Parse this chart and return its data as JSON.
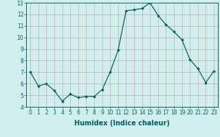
{
  "xlabel": "Humidex (Indice chaleur)",
  "x": [
    0,
    1,
    2,
    3,
    4,
    5,
    6,
    7,
    8,
    9,
    10,
    11,
    12,
    13,
    14,
    15,
    16,
    17,
    18,
    19,
    20,
    21,
    22,
    23
  ],
  "y": [
    7.0,
    5.8,
    6.0,
    5.4,
    4.5,
    5.1,
    4.8,
    4.9,
    4.9,
    5.5,
    7.0,
    8.9,
    12.3,
    12.4,
    12.5,
    13.0,
    11.9,
    11.1,
    10.5,
    9.8,
    8.1,
    7.3,
    6.1,
    7.1
  ],
  "line_color": "#006060",
  "marker": "D",
  "marker_size": 1.8,
  "line_width": 0.9,
  "bg_color": "#d0eeee",
  "grid_color_major": "#c8a8a8",
  "grid_color_minor": "#c8d8d8",
  "tick_label_fontsize": 5.5,
  "xlabel_fontsize": 7,
  "ylim": [
    4,
    13
  ],
  "yticks": [
    4,
    5,
    6,
    7,
    8,
    9,
    10,
    11,
    12,
    13
  ]
}
